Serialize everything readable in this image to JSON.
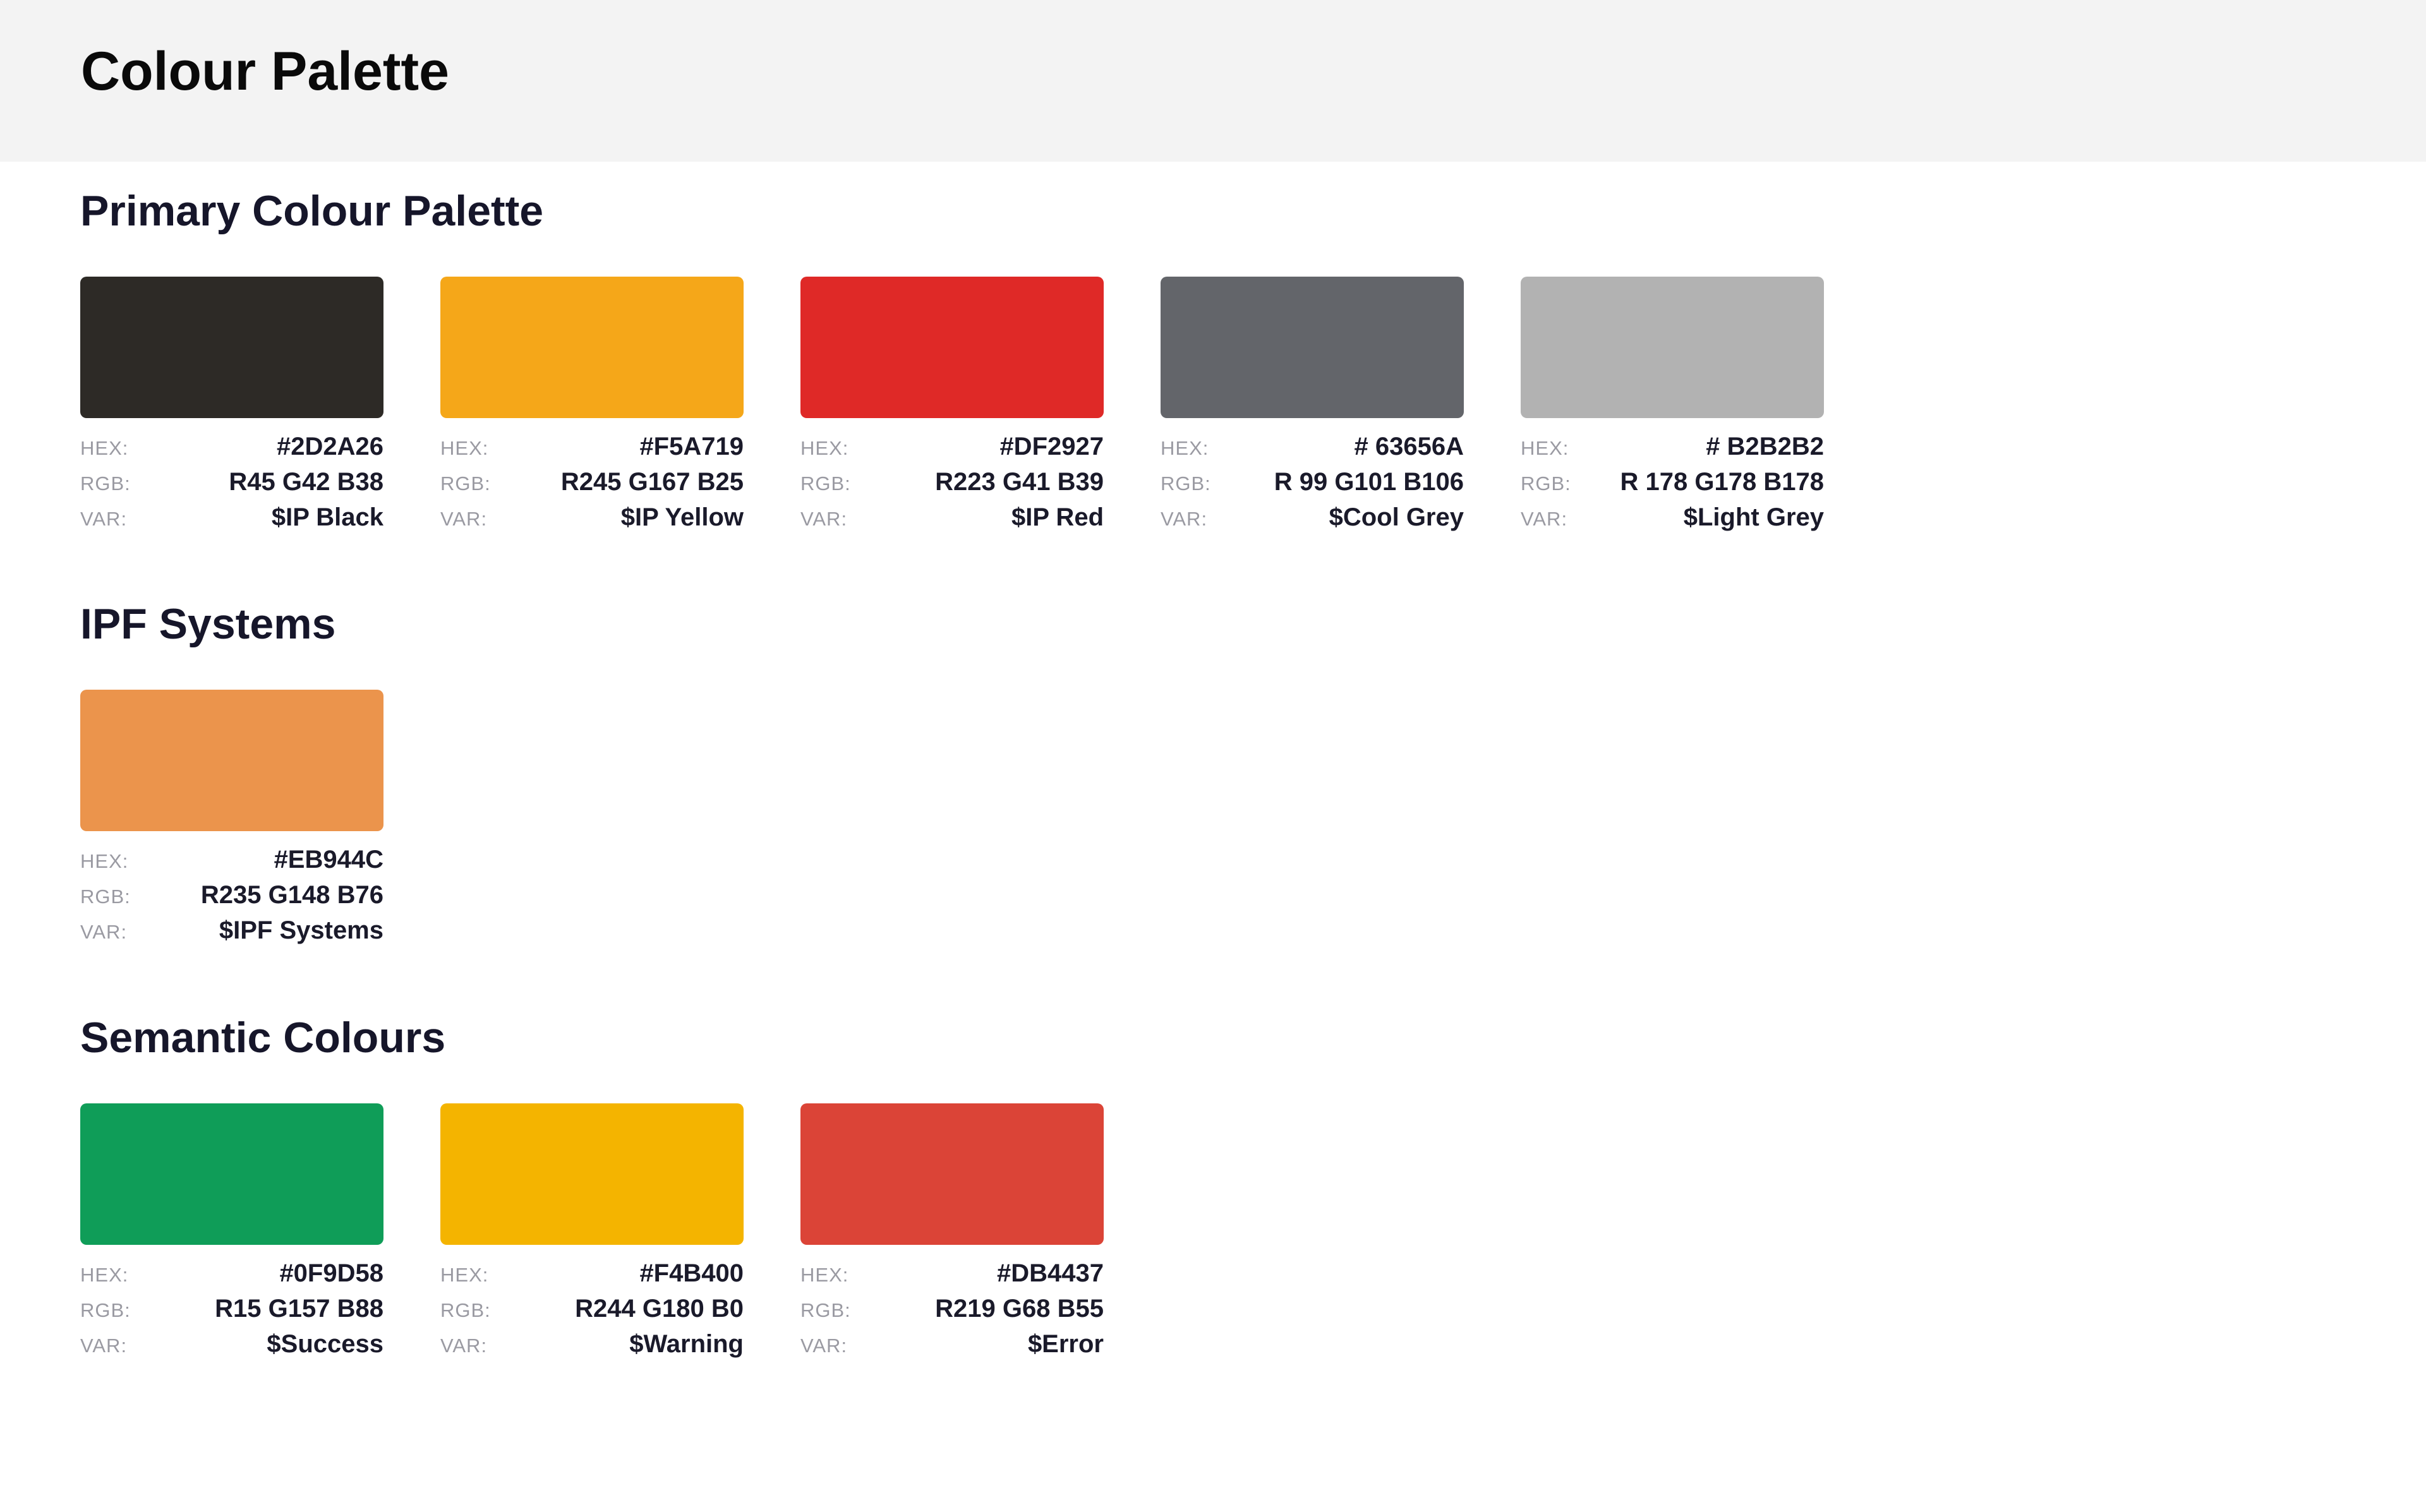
{
  "page": {
    "title": "Colour Palette"
  },
  "labels": {
    "hex": "HEX:",
    "rgb": "RGB:",
    "var": "VAR:"
  },
  "sections": {
    "primary": {
      "title": "Primary Colour Palette",
      "swatches": [
        {
          "color": "#2D2A26",
          "hex": "#2D2A26",
          "rgb": "R45 G42 B38",
          "var": "$IP Black"
        },
        {
          "color": "#F5A719",
          "hex": "#F5A719",
          "rgb": "R245 G167 B25",
          "var": "$IP Yellow"
        },
        {
          "color": "#DF2927",
          "hex": "#DF2927",
          "rgb": "R223 G41 B39",
          "var": "$IP Red"
        },
        {
          "color": "#63656A",
          "hex": "# 63656A",
          "rgb": "R 99 G101 B106",
          "var": "$Cool Grey"
        },
        {
          "color": "#B2B2B2",
          "hex": "# B2B2B2",
          "rgb": "R 178 G178 B178",
          "var": "$Light Grey"
        }
      ]
    },
    "ipf": {
      "title": "IPF Systems",
      "swatches": [
        {
          "color": "#EB944C",
          "hex": "#EB944C",
          "rgb": "R235 G148 B76",
          "var": "$IPF Systems"
        }
      ]
    },
    "semantic": {
      "title": "Semantic Colours",
      "swatches": [
        {
          "color": "#0F9D58",
          "hex": "#0F9D58",
          "rgb": "R15 G157 B88",
          "var": "$Success"
        },
        {
          "color": "#F4B400",
          "hex": "#F4B400",
          "rgb": "R244 G180 B0",
          "var": "$Warning"
        },
        {
          "color": "#DB4437",
          "hex": "#DB4437",
          "rgb": "R219 G68 B55",
          "var": "$Error"
        }
      ]
    }
  }
}
